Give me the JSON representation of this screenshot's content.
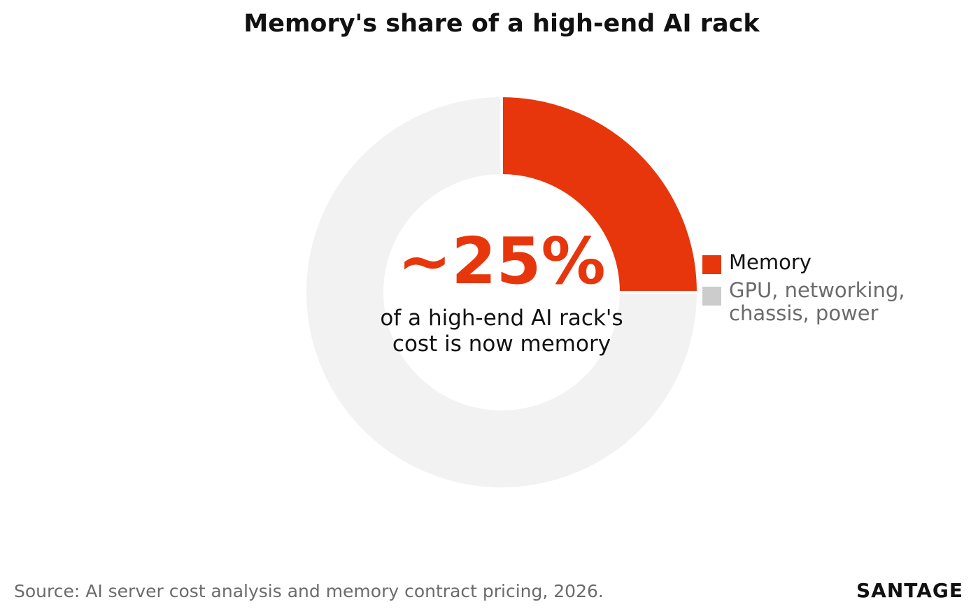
{
  "chart_data": {
    "type": "pie",
    "title": "Memory's share of a high-end AI rack",
    "donut": true,
    "center_value": "~25%",
    "center_caption": [
      "of a high-end AI rack's",
      "cost is now memory"
    ],
    "slices": [
      {
        "label": "Memory",
        "value": 25,
        "color": "#e8360c"
      },
      {
        "label": "GPU, networking, chassis, power",
        "value": 75,
        "color": "#f2f2f2"
      }
    ],
    "legend": {
      "placement": "right",
      "items": [
        {
          "lines": [
            "Memory"
          ],
          "color": "#e8360c"
        },
        {
          "lines": [
            "GPU, networking,",
            "chassis, power"
          ],
          "color": "#cccccc"
        }
      ]
    }
  },
  "footer": {
    "source": "Source: AI server cost analysis and memory contract pricing, 2026.",
    "brand": "SANTAGE"
  }
}
